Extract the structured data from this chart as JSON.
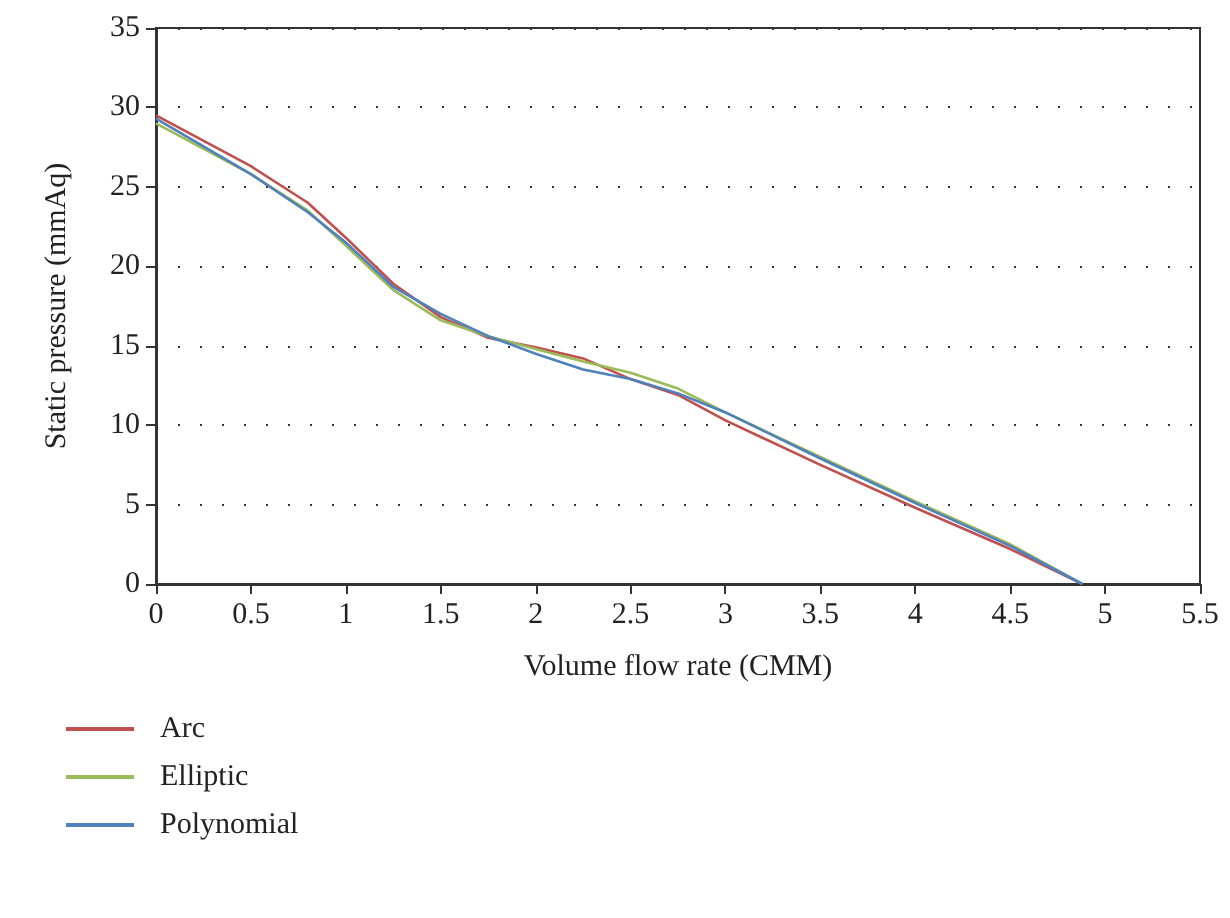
{
  "chart_data": {
    "type": "line",
    "xlabel": "Volume flow rate (CMM)",
    "ylabel": "Static pressure (mmAq)",
    "xlim": [
      0,
      5.5
    ],
    "xticks": [
      0,
      0.5,
      1,
      1.5,
      2,
      2.5,
      3,
      3.5,
      4,
      4.5,
      5,
      5.5
    ],
    "ylim": [
      0,
      35
    ],
    "yticks": [
      0,
      5,
      10,
      15,
      20,
      25,
      30,
      35
    ],
    "grid": "y",
    "legend": "bottom left",
    "marker": "none",
    "line_style": "solid",
    "x": [
      0,
      0.5,
      0.8,
      1,
      1.25,
      1.5,
      1.75,
      2,
      2.25,
      2.5,
      2.75,
      3,
      3.5,
      4,
      4.5,
      4.88
    ],
    "series": [
      {
        "name": "Arc",
        "color": "#c0504d",
        "values": [
          29.5,
          26.3,
          24,
          21.8,
          18.9,
          16.8,
          15.5,
          14.9,
          14.2,
          12.9,
          11.9,
          10.3,
          7.5,
          4.8,
          2.2,
          0
        ]
      },
      {
        "name": "Elliptic",
        "color": "#9bbb59",
        "values": [
          29,
          25.8,
          23.5,
          21.3,
          18.5,
          16.6,
          15.6,
          14.8,
          14.0,
          13.3,
          12.3,
          10.8,
          8.0,
          5.2,
          2.5,
          0
        ]
      },
      {
        "name": "Polynomial",
        "color": "#4f81bd",
        "values": [
          29.3,
          25.8,
          23.4,
          21.5,
          18.7,
          17.0,
          15.6,
          14.5,
          13.5,
          12.9,
          12.0,
          10.8,
          7.9,
          5.1,
          2.4,
          0
        ]
      }
    ]
  }
}
